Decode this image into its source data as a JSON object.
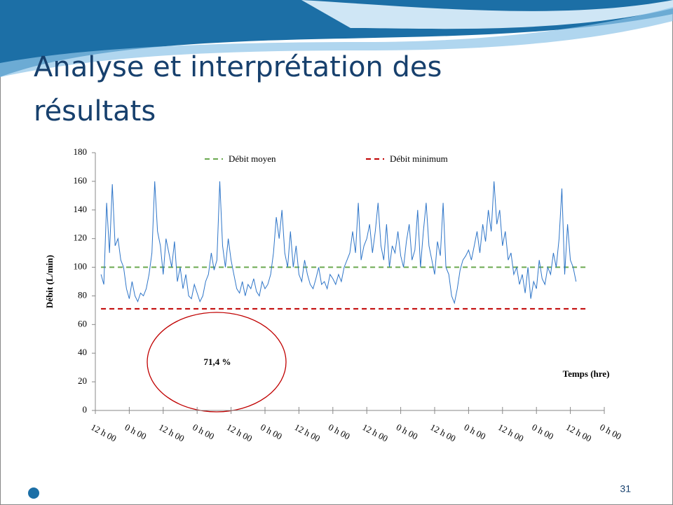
{
  "slide": {
    "title_lines": [
      "Analyse et interprétation des",
      "résultats"
    ],
    "page_number": "31"
  },
  "chart_data": {
    "type": "line",
    "y_label": "Débit (L/min)",
    "x_label": "Temps (hre)",
    "annotation": "71,4 %",
    "xlim": [
      0,
      180
    ],
    "xticks": [
      {
        "value": 0,
        "label": "12 h 00"
      },
      {
        "value": 12,
        "label": "0 h 00"
      },
      {
        "value": 24,
        "label": "12 h 00"
      },
      {
        "value": 36,
        "label": "0 h 00"
      },
      {
        "value": 48,
        "label": "12 h 00"
      },
      {
        "value": 60,
        "label": "0 h 00"
      },
      {
        "value": 72,
        "label": "12 h 00"
      },
      {
        "value": 84,
        "label": "0 h 00"
      },
      {
        "value": 96,
        "label": "12 h 00"
      },
      {
        "value": 108,
        "label": "0 h 00"
      },
      {
        "value": 120,
        "label": "12 h 00"
      },
      {
        "value": 132,
        "label": "0 h 00"
      },
      {
        "value": 144,
        "label": "12 h 00"
      },
      {
        "value": 156,
        "label": "0 h 00"
      },
      {
        "value": 168,
        "label": "12 h 00"
      },
      {
        "value": 180,
        "label": "0 h 00"
      }
    ],
    "ylim": [
      0,
      180
    ],
    "yticks": [
      0,
      20,
      40,
      60,
      80,
      100,
      120,
      140,
      160,
      180
    ],
    "x": [
      2,
      3,
      4,
      5,
      6,
      7,
      8,
      9,
      10,
      11,
      12,
      13,
      14,
      15,
      16,
      17,
      18,
      19,
      20,
      21,
      22,
      23,
      24,
      25,
      26,
      27,
      28,
      29,
      30,
      31,
      32,
      33,
      34,
      35,
      36,
      37,
      38,
      39,
      40,
      41,
      42,
      43,
      44,
      45,
      46,
      47,
      48,
      49,
      50,
      51,
      52,
      53,
      54,
      55,
      56,
      57,
      58,
      59,
      60,
      61,
      62,
      63,
      64,
      65,
      66,
      67,
      68,
      69,
      70,
      71,
      72,
      73,
      74,
      75,
      76,
      77,
      78,
      79,
      80,
      81,
      82,
      83,
      84,
      85,
      86,
      87,
      88,
      89,
      90,
      91,
      92,
      93,
      94,
      95,
      96,
      97,
      98,
      99,
      100,
      101,
      102,
      103,
      104,
      105,
      106,
      107,
      108,
      109,
      110,
      111,
      112,
      113,
      114,
      115,
      116,
      117,
      118,
      119,
      120,
      121,
      122,
      123,
      124,
      125,
      126,
      127,
      128,
      129,
      130,
      131,
      132,
      133,
      134,
      135,
      136,
      137,
      138,
      139,
      140,
      141,
      142,
      143,
      144,
      145,
      146,
      147,
      148,
      149,
      150,
      151,
      152,
      153,
      154,
      155,
      156,
      157,
      158,
      159,
      160,
      161,
      162,
      163,
      164,
      165,
      166,
      167,
      168,
      169,
      170
    ],
    "series": [
      {
        "color": "#2e75c8",
        "values": [
          95,
          88,
          145,
          110,
          158,
          115,
          120,
          105,
          100,
          85,
          78,
          90,
          80,
          76,
          82,
          80,
          85,
          95,
          110,
          160,
          125,
          115,
          95,
          120,
          110,
          100,
          118,
          90,
          100,
          85,
          95,
          80,
          78,
          88,
          82,
          76,
          80,
          90,
          95,
          110,
          98,
          105,
          160,
          115,
          100,
          120,
          105,
          95,
          85,
          82,
          90,
          80,
          88,
          85,
          92,
          83,
          80,
          90,
          85,
          88,
          95,
          110,
          135,
          120,
          140,
          110,
          100,
          125,
          100,
          115,
          95,
          90,
          105,
          95,
          88,
          85,
          92,
          100,
          88,
          90,
          85,
          95,
          92,
          88,
          95,
          90,
          100,
          105,
          110,
          125,
          110,
          145,
          105,
          115,
          120,
          130,
          110,
          125,
          145,
          115,
          105,
          130,
          100,
          115,
          110,
          125,
          108,
          100,
          118,
          130,
          105,
          112,
          140,
          100,
          125,
          145,
          115,
          105,
          95,
          118,
          108,
          145,
          100,
          95,
          80,
          75,
          85,
          98,
          105,
          108,
          112,
          105,
          115,
          125,
          110,
          130,
          118,
          140,
          125,
          160,
          130,
          140,
          115,
          125,
          105,
          110,
          95,
          100,
          88,
          95,
          82,
          100,
          78,
          90,
          85,
          105,
          92,
          88,
          100,
          95,
          110,
          100,
          120,
          155,
          95,
          130,
          105,
          100,
          90
        ]
      }
    ],
    "reference_lines": [
      {
        "name": "Débit moyen",
        "color": "#6aa84f",
        "value": 100
      },
      {
        "name": "Débit minimum",
        "color": "#c00000",
        "value": 71
      }
    ]
  }
}
